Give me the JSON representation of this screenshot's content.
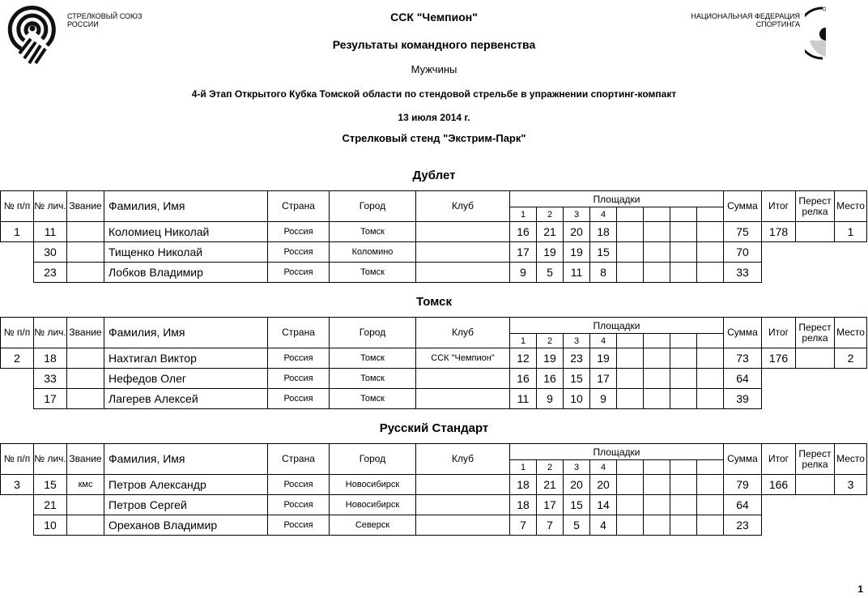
{
  "header": {
    "left_org_line1": "СТРЕЛКОВЫЙ СОЮЗ",
    "left_org_line2": "РОССИИ",
    "right_org_line1": "НАЦИОНАЛЬНАЯ ФЕДЕРАЦИЯ",
    "right_org_line2": "СПОРТИНГА",
    "club": "ССК \"Чемпион\"",
    "title": "Результаты командного первенства",
    "category": "Мужчины",
    "event": "4-й Этап Открытого Кубка Томской области по стендовой стрельбе в упражнении спортинг-компакт",
    "date": "13 июля 2014 г.",
    "venue": "Стрелковый стенд \"Экстрим-Парк\""
  },
  "columns": {
    "place_no": "№ п/п",
    "personal_no": "№ лич.",
    "rank": "Звание",
    "name": "Фамилия, Имя",
    "country": "Страна",
    "city": "Город",
    "club": "Клуб",
    "ranges": "Площадки",
    "range_numbers": [
      "1",
      "2",
      "3",
      "4",
      "",
      "",
      "",
      ""
    ],
    "sum": "Сумма",
    "total": "Итог",
    "shootoff": "Перест релка",
    "place": "Место"
  },
  "teams": [
    {
      "name": "Дублет",
      "no": "1",
      "total": "178",
      "shootoff": "",
      "place": "1",
      "members": [
        {
          "id": "11",
          "rank": "",
          "name": "Коломиец Николай",
          "country": "Россия",
          "city": "Томск",
          "club": "",
          "scores": [
            "16",
            "21",
            "20",
            "18",
            "",
            "",
            "",
            ""
          ],
          "sum": "75"
        },
        {
          "id": "30",
          "rank": "",
          "name": "Тищенко Николай",
          "country": "Россия",
          "city": "Коломино",
          "club": "",
          "scores": [
            "17",
            "19",
            "19",
            "15",
            "",
            "",
            "",
            ""
          ],
          "sum": "70"
        },
        {
          "id": "23",
          "rank": "",
          "name": "Лобков Владимир",
          "country": "Россия",
          "city": "Томск",
          "club": "",
          "scores": [
            "9",
            "5",
            "11",
            "8",
            "",
            "",
            "",
            ""
          ],
          "sum": "33"
        }
      ]
    },
    {
      "name": "Томск",
      "no": "2",
      "total": "176",
      "shootoff": "",
      "place": "2",
      "members": [
        {
          "id": "18",
          "rank": "",
          "name": "Нахтигал Виктор",
          "country": "Россия",
          "city": "Томск",
          "club": "ССК \"Чемпион\"",
          "scores": [
            "12",
            "19",
            "23",
            "19",
            "",
            "",
            "",
            ""
          ],
          "sum": "73"
        },
        {
          "id": "33",
          "rank": "",
          "name": "Нефедов Олег",
          "country": "Россия",
          "city": "Томск",
          "club": "",
          "scores": [
            "16",
            "16",
            "15",
            "17",
            "",
            "",
            "",
            ""
          ],
          "sum": "64"
        },
        {
          "id": "17",
          "rank": "",
          "name": "Лагерев Алексей",
          "country": "Россия",
          "city": "Томск",
          "club": "",
          "scores": [
            "11",
            "9",
            "10",
            "9",
            "",
            "",
            "",
            ""
          ],
          "sum": "39"
        }
      ]
    },
    {
      "name": "Русский Стандарт",
      "no": "3",
      "total": "166",
      "shootoff": "",
      "place": "3",
      "members": [
        {
          "id": "15",
          "rank": "кмс",
          "name": "Петров Александр",
          "country": "Россия",
          "city": "Новосибирск",
          "club": "",
          "scores": [
            "18",
            "21",
            "20",
            "20",
            "",
            "",
            "",
            ""
          ],
          "sum": "79"
        },
        {
          "id": "21",
          "rank": "",
          "name": "Петров Сергей",
          "country": "Россия",
          "city": "Новосибирск",
          "club": "",
          "scores": [
            "18",
            "17",
            "15",
            "14",
            "",
            "",
            "",
            ""
          ],
          "sum": "64"
        },
        {
          "id": "10",
          "rank": "",
          "name": "Ореханов Владимир",
          "country": "Россия",
          "city": "Северск",
          "club": "",
          "scores": [
            "7",
            "7",
            "5",
            "4",
            "",
            "",
            "",
            ""
          ],
          "sum": "23"
        }
      ]
    }
  ],
  "page_number": "1"
}
